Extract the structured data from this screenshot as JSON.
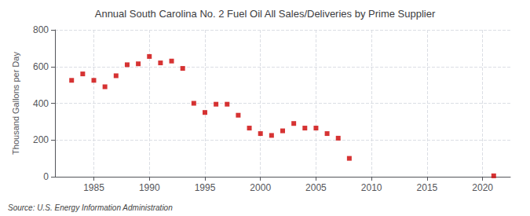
{
  "chart_data": {
    "type": "scatter",
    "title": "Annual South Carolina No. 2 Fuel Oil All Sales/Deliveries by Prime Supplier",
    "ylabel": "Thousand Gallons per Day",
    "source": "Source: U.S. Energy Information Administration",
    "color": "#cc0000",
    "marker": "square",
    "grid": true,
    "xlim": [
      1981.5,
      2022.5
    ],
    "xticks": [
      1985,
      1990,
      1995,
      2000,
      2005,
      2010,
      2015,
      2020
    ],
    "ylim": [
      0,
      800
    ],
    "yticks": [
      0,
      200,
      400,
      600,
      800
    ],
    "x": [
      1983,
      1984,
      1985,
      1986,
      1987,
      1988,
      1989,
      1990,
      1991,
      1992,
      1993,
      1994,
      1995,
      1996,
      1997,
      1998,
      1999,
      2000,
      2001,
      2002,
      2003,
      2004,
      2005,
      2006,
      2007,
      2008,
      2021
    ],
    "values": [
      525,
      560,
      525,
      490,
      550,
      610,
      615,
      655,
      620,
      630,
      590,
      400,
      350,
      395,
      395,
      335,
      265,
      235,
      225,
      250,
      290,
      265,
      265,
      235,
      210,
      100,
      5
    ]
  }
}
